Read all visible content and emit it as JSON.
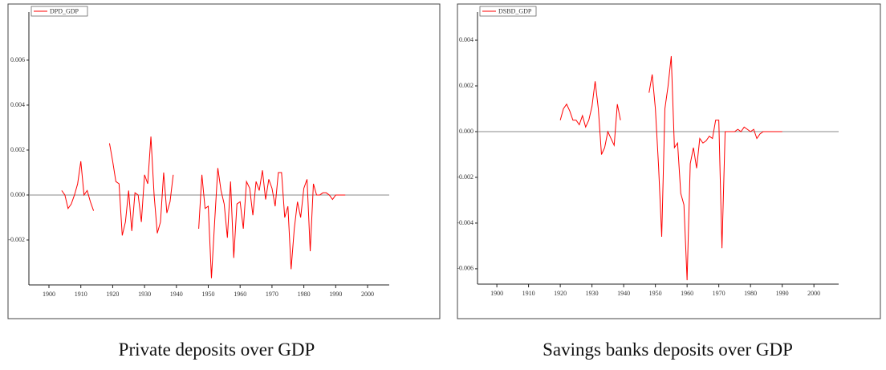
{
  "chart_data": [
    {
      "type": "line",
      "caption": "Private deposits over GDP",
      "x": [
        1904,
        1905,
        1906,
        1907,
        1908,
        1909,
        1910,
        1911,
        1912,
        1913,
        1914,
        1915,
        1916,
        1917,
        1918,
        1919,
        1920,
        1921,
        1922,
        1923,
        1924,
        1925,
        1926,
        1927,
        1928,
        1929,
        1930,
        1931,
        1932,
        1933,
        1934,
        1935,
        1936,
        1937,
        1938,
        1939,
        1940,
        1941,
        1942,
        1943,
        1944,
        1945,
        1946,
        1947,
        1948,
        1949,
        1950,
        1951,
        1952,
        1953,
        1954,
        1955,
        1956,
        1957,
        1958,
        1959,
        1960,
        1961,
        1962,
        1963,
        1964,
        1965,
        1966,
        1967,
        1968,
        1969,
        1970,
        1971,
        1972,
        1973,
        1974,
        1975,
        1976,
        1977,
        1978,
        1979,
        1980,
        1981,
        1982,
        1983,
        1984,
        1985,
        1986,
        1987,
        1988,
        1989,
        1990,
        1991,
        1992,
        1993
      ],
      "series": [
        {
          "name": "DPD_GDP",
          "color": "#ff0000",
          "values": [
            0.0002,
            0.0,
            -0.0006,
            -0.0004,
            0.0,
            0.0005,
            0.0015,
            0.0,
            0.0002,
            -0.0003,
            -0.0007,
            null,
            null,
            null,
            null,
            0.0023,
            0.0015,
            0.0006,
            0.0005,
            -0.0018,
            -0.0012,
            0.0002,
            -0.0016,
            0.0001,
            0.0,
            -0.0012,
            0.0009,
            0.0005,
            0.0026,
            0.0,
            -0.0017,
            -0.0012,
            0.001,
            -0.0008,
            -0.0003,
            0.0009,
            null,
            null,
            null,
            null,
            null,
            null,
            null,
            -0.0015,
            0.0009,
            -0.0006,
            -0.0005,
            -0.0037,
            -0.0012,
            0.0012,
            0.0002,
            -0.0004,
            -0.0019,
            0.0006,
            -0.0028,
            -0.0004,
            -0.0003,
            -0.0015,
            0.0006,
            0.0003,
            -0.0009,
            0.0006,
            0.0002,
            0.0011,
            -0.0002,
            0.0007,
            0.0003,
            -0.0005,
            0.001,
            0.001,
            -0.001,
            -0.0005,
            -0.0033,
            -0.0015,
            -0.0003,
            -0.001,
            0.0003,
            0.0007,
            -0.0025,
            0.0005,
            0.0,
            0.0,
            0.0001,
            0.0001,
            0.0,
            -0.0002,
            0.0,
            0.0,
            0.0,
            0.0
          ]
        }
      ],
      "xlim": [
        1893.7,
        2006.8
      ],
      "xticks": [
        1900,
        1910,
        1920,
        1930,
        1940,
        1950,
        1960,
        1970,
        1980,
        1990,
        2000
      ],
      "ylim": [
        -0.004,
        0.00814
      ],
      "yticks": [
        -0.002,
        {
          "value": 0,
          "label": "0.000"
        },
        0.002,
        0.004,
        0.006
      ]
    },
    {
      "type": "line",
      "caption": "Savings banks deposits over GDP",
      "x": [
        1920,
        1921,
        1922,
        1923,
        1924,
        1925,
        1926,
        1927,
        1928,
        1929,
        1930,
        1931,
        1932,
        1933,
        1934,
        1935,
        1936,
        1937,
        1938,
        1939,
        1940,
        1941,
        1942,
        1943,
        1944,
        1945,
        1946,
        1947,
        1948,
        1949,
        1950,
        1951,
        1952,
        1953,
        1954,
        1955,
        1956,
        1957,
        1958,
        1959,
        1960,
        1961,
        1962,
        1963,
        1964,
        1965,
        1966,
        1967,
        1968,
        1969,
        1970,
        1971,
        1972,
        1973,
        1974,
        1975,
        1976,
        1977,
        1978,
        1979,
        1980,
        1981,
        1982,
        1983,
        1984,
        1985,
        1986,
        1987,
        1988,
        1989,
        1990
      ],
      "series": [
        {
          "name": "DSBD_GDP",
          "color": "#ff0000",
          "values": [
            0.0005,
            0.001,
            0.0012,
            0.0009,
            0.0005,
            0.0005,
            0.0003,
            0.0007,
            0.0002,
            0.0005,
            0.0011,
            0.0022,
            0.001,
            -0.001,
            -0.0007,
            0.0,
            -0.0003,
            -0.0006,
            0.0012,
            0.0005,
            null,
            null,
            null,
            null,
            null,
            null,
            null,
            null,
            0.0017,
            0.0025,
            0.001,
            -0.0015,
            -0.0046,
            0.001,
            0.002,
            0.0033,
            -0.0007,
            -0.0005,
            -0.0027,
            -0.0032,
            -0.0065,
            -0.0014,
            -0.0007,
            -0.0016,
            -0.0003,
            -0.0005,
            -0.0004,
            -0.0002,
            -0.0003,
            0.0005,
            0.0005,
            -0.0051,
            0.0,
            0.0,
            0.0,
            0.0,
            0.0001,
            0.0,
            0.0002,
            0.0001,
            0.0,
            0.0001,
            -0.0003,
            -0.0001,
            0.0,
            0.0,
            0.0,
            0.0,
            0.0,
            0.0,
            0.0
          ]
        }
      ],
      "xlim": [
        1893.9,
        2007.8
      ],
      "xticks": [
        1900,
        1910,
        1920,
        1930,
        1940,
        1950,
        1960,
        1970,
        1980,
        1990,
        2000
      ],
      "ylim": [
        -0.00667,
        0.00523
      ],
      "yticks": [
        -0.006,
        -0.004,
        -0.002,
        {
          "value": 0,
          "label": "0.000"
        },
        0.002,
        0.004
      ]
    }
  ]
}
